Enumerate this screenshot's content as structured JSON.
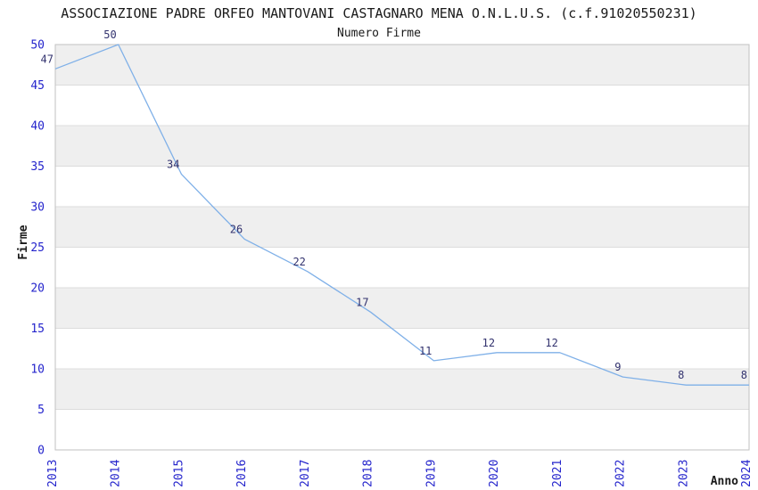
{
  "chart_data": {
    "type": "line",
    "title": "ASSOCIAZIONE PADRE ORFEO MANTOVANI CASTAGNARO MENA O.N.L.U.S. (c.f.91020550231)",
    "subtitle": "Numero Firme",
    "xlabel": "Anno",
    "ylabel": "Firme",
    "categories": [
      "2013",
      "2014",
      "2015",
      "2016",
      "2017",
      "2018",
      "2019",
      "2020",
      "2021",
      "2022",
      "2023",
      "2024"
    ],
    "values": [
      47,
      50,
      34,
      26,
      22,
      17,
      11,
      12,
      12,
      9,
      8,
      8
    ],
    "ylim": [
      0,
      50
    ],
    "ytick_step": 5,
    "grid": "alternating-horizontal-bands",
    "legend": "none",
    "point_labels_visible": true,
    "colors": {
      "line": "#7fb0e8",
      "tick_labels": "#2424cc",
      "point_labels": "#32326e",
      "band": "#efefef",
      "gridline": "#dcdcdc",
      "plot_border": "#c2c2c2",
      "text": "#1a1a1a",
      "background": "#ffffff"
    }
  }
}
